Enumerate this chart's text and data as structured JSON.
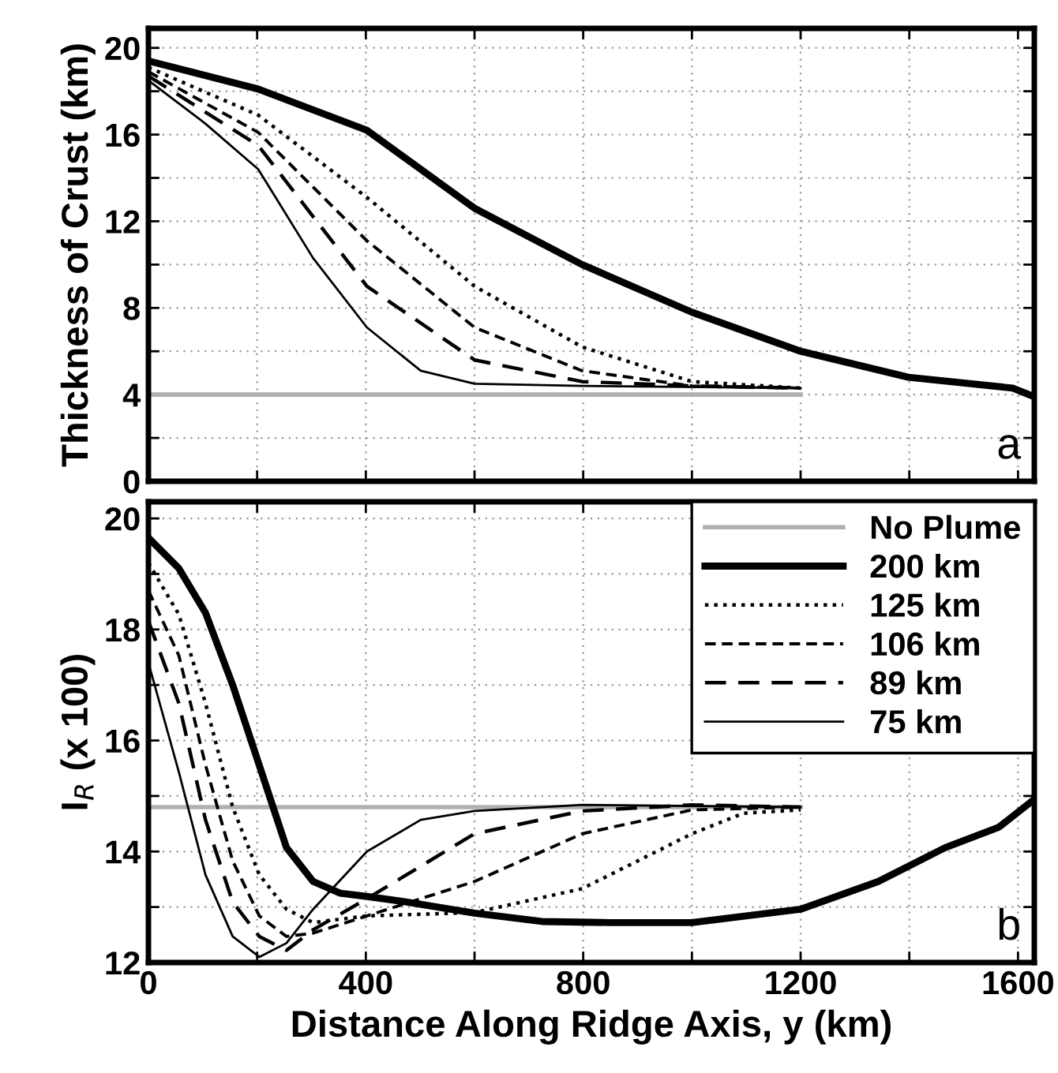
{
  "chart_data": [
    {
      "type": "line",
      "ylabel": "Thickness of Crust (km)",
      "annotations": [
        "a"
      ],
      "xlim": [
        0,
        1630
      ],
      "ylim": [
        0,
        20.9
      ],
      "xticks": [
        0,
        {
          "value": 200,
          "label": null
        },
        400,
        {
          "value": 600,
          "label": null
        },
        800,
        {
          "value": 1000,
          "label": null
        },
        1200,
        {
          "value": 1400,
          "label": null
        },
        1600
      ],
      "yticks": [
        0,
        {
          "value": 2,
          "label": null
        },
        4,
        {
          "value": 6,
          "label": null
        },
        8,
        {
          "value": 10,
          "label": null
        },
        12,
        {
          "value": 14,
          "label": null
        },
        16,
        {
          "value": 18,
          "label": null
        },
        20
      ],
      "tick_labels": "y",
      "grid": true,
      "legend": false,
      "marker": "none",
      "series": [
        {
          "color": "#b0b0b0",
          "line_style": "solid",
          "x": [
            0,
            1200
          ],
          "values": [
            4.0,
            4.0
          ]
        },
        {
          "color": "#000000",
          "line_style": "solid",
          "x": [
            0,
            202,
            402,
            600,
            798,
            1000,
            1200,
            1398,
            1590,
            1630
          ],
          "values": [
            19.4,
            18.1,
            16.2,
            12.6,
            10.0,
            7.8,
            6.0,
            4.8,
            4.3,
            3.9
          ]
        },
        {
          "color": "#000000",
          "line_style": "dotted",
          "x": [
            0,
            202,
            402,
            600,
            798,
            1000,
            1200
          ],
          "values": [
            19.1,
            16.9,
            13.1,
            9.0,
            6.2,
            4.6,
            4.3
          ]
        },
        {
          "color": "#000000",
          "line_style": "dashed",
          "x": [
            0,
            202,
            402,
            600,
            798,
            1000,
            1200
          ],
          "values": [
            18.9,
            16.1,
            11.1,
            7.1,
            5.1,
            4.4,
            4.3
          ]
        },
        {
          "color": "#000000",
          "line_style": "dashed",
          "x": [
            0,
            202,
            402,
            600,
            798,
            1000,
            1200
          ],
          "values": [
            18.7,
            15.5,
            9.0,
            5.6,
            4.6,
            4.4,
            4.3
          ]
        },
        {
          "color": "#000000",
          "line_style": "solid",
          "x": [
            0,
            105,
            202,
            303,
            402,
            501,
            600,
            798,
            1200
          ],
          "values": [
            18.5,
            16.5,
            14.4,
            10.3,
            7.1,
            5.1,
            4.5,
            4.4,
            4.3
          ]
        }
      ]
    },
    {
      "type": "line",
      "xlabel": "Distance Along Ridge Axis, y (km)",
      "ylabel": "I$_{R}$ (x 100)",
      "annotations": [
        "b"
      ],
      "xlim": [
        0,
        1630
      ],
      "ylim": [
        12,
        20.3
      ],
      "xticks": [
        0,
        {
          "value": 200,
          "label": null
        },
        400,
        {
          "value": 600,
          "label": null
        },
        800,
        {
          "value": 1000,
          "label": null
        },
        1200,
        {
          "value": 1400,
          "label": null
        },
        1600
      ],
      "yticks": [
        12,
        {
          "value": 13,
          "label": null
        },
        14,
        {
          "value": 15,
          "label": null
        },
        16,
        {
          "value": 17,
          "label": null
        },
        18,
        {
          "value": 19,
          "label": null
        },
        20
      ],
      "grid": true,
      "legend": "top right",
      "marker": "none",
      "series": [
        {
          "name": "No Plume",
          "color": "#b0b0b0",
          "line_style": "solid",
          "x": [
            0,
            1200
          ],
          "values": [
            14.8,
            14.8
          ]
        },
        {
          "name": "200 km",
          "color": "#000000",
          "line_style": "solid",
          "x": [
            0,
            56,
            105,
            155,
            204,
            254,
            303,
            353,
            402,
            476,
            600,
            724,
            848,
            1000,
            1200,
            1343,
            1466,
            1565,
            1630
          ],
          "values": [
            19.65,
            19.1,
            18.3,
            17.0,
            15.55,
            14.07,
            13.46,
            13.25,
            13.19,
            13.09,
            12.89,
            12.74,
            12.72,
            12.72,
            12.96,
            13.46,
            14.07,
            14.44,
            14.94
          ]
        },
        {
          "name": "125 km",
          "color": "#000000",
          "line_style": "dotted",
          "x": [
            0,
            56,
            105,
            155,
            204,
            254,
            303,
            402,
            600,
            798,
            1000,
            1095,
            1200
          ],
          "values": [
            19.2,
            18.27,
            16.67,
            14.8,
            13.58,
            12.96,
            12.72,
            12.84,
            12.9,
            13.33,
            14.32,
            14.69,
            14.75
          ]
        },
        {
          "name": "106 km",
          "color": "#000000",
          "line_style": "dashed",
          "x": [
            0,
            56,
            105,
            155,
            204,
            254,
            303,
            402,
            600,
            798,
            1000,
            1200
          ],
          "values": [
            18.7,
            17.53,
            15.56,
            13.83,
            12.84,
            12.47,
            12.53,
            12.84,
            13.46,
            14.32,
            14.75,
            14.8
          ]
        },
        {
          "name": "89 km",
          "color": "#000000",
          "line_style": "dashed",
          "x": [
            0,
            56,
            105,
            155,
            204,
            254,
            303,
            402,
            600,
            798,
            1000,
            1200
          ],
          "values": [
            18.15,
            16.67,
            14.57,
            13.09,
            12.47,
            12.22,
            12.59,
            13.15,
            14.32,
            14.73,
            14.84,
            14.8
          ]
        },
        {
          "name": "75 km",
          "color": "#000000",
          "line_style": "solid",
          "x": [
            0,
            56,
            105,
            155,
            204,
            254,
            303,
            402,
            501,
            600,
            798,
            1200
          ],
          "values": [
            17.4,
            15.43,
            13.58,
            12.47,
            12.1,
            12.35,
            12.96,
            14.0,
            14.57,
            14.73,
            14.84,
            14.8
          ]
        }
      ]
    }
  ]
}
